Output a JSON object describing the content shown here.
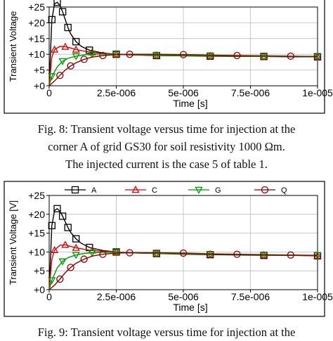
{
  "captions": {
    "fig8_line1": "Fig. 8: Transient voltage versus time for injection at the",
    "fig8_line2": "corner A of grid GS30 for soil resistivity 1000 Ωm.",
    "fig8_line3": "The injected current is the case 5 of table 1.",
    "fig9_partial": "Fig. 9: Transient voltage versus time for injection at the"
  },
  "chart_data": [
    {
      "type": "line",
      "xlabel": "Time [s]",
      "ylabel": "Transient Voltage",
      "xlim": [
        0,
        1e-05
      ],
      "ylim": [
        0,
        25
      ],
      "xticks": [
        "0",
        "2.5e-006",
        "5e-006",
        "7.5e-006",
        "1e-005"
      ],
      "yticks": [
        "+0",
        "+5",
        "+10",
        "+15",
        "+20",
        "+25"
      ],
      "grid": true,
      "series": [
        {
          "color": "#000000",
          "marker": "square",
          "x": [
            0,
            1e-07,
            2e-07,
            3e-07,
            4e-07,
            5e-07,
            6e-07,
            7e-07,
            8e-07,
            1e-06,
            1.2e-06,
            1.5e-06,
            2e-06,
            2.5e-06,
            3e-06,
            4e-06,
            5e-06,
            6e-06,
            7e-06,
            8e-06,
            9e-06,
            1e-05
          ],
          "y": [
            0,
            21,
            26,
            26.5,
            25.5,
            23.5,
            21,
            18.5,
            16.5,
            14,
            12.5,
            11.3,
            10.4,
            10,
            9.8,
            9.6,
            9.5,
            9.4,
            9.3,
            9.3,
            9.2,
            9.2
          ]
        },
        {
          "color": "#e00000",
          "marker": "triangle-up",
          "x": [
            0,
            1e-07,
            2e-07,
            4e-07,
            6e-07,
            8e-07,
            1e-06,
            1.3e-06,
            1.6e-06,
            2e-06,
            2.5e-06,
            3e-06,
            4e-06,
            5e-06,
            6e-06,
            7e-06,
            8e-06,
            9e-06,
            1e-05
          ],
          "y": [
            0,
            9,
            11.5,
            12.5,
            12.4,
            12,
            11.5,
            11,
            10.6,
            10.3,
            10,
            9.8,
            9.7,
            9.6,
            9.5,
            9.4,
            9.3,
            9.3,
            9.3
          ]
        },
        {
          "color": "#009900",
          "marker": "triangle-down",
          "x": [
            0,
            1e-07,
            3e-07,
            5e-07,
            7e-07,
            1e-06,
            1.3e-06,
            1.6e-06,
            2e-06,
            2.5e-06,
            3e-06,
            4e-06,
            5e-06,
            6e-06,
            7e-06,
            8e-06,
            9e-06,
            1e-05
          ],
          "y": [
            0,
            3,
            6,
            7.8,
            8.7,
            9.4,
            9.8,
            10,
            10.1,
            10,
            9.9,
            9.7,
            9.6,
            9.5,
            9.4,
            9.3,
            9.3,
            9.2
          ]
        },
        {
          "color": "#880000",
          "marker": "circle",
          "x": [
            0,
            2e-07,
            4e-07,
            6e-07,
            8e-07,
            1e-06,
            1.3e-06,
            1.6e-06,
            2e-06,
            2.5e-06,
            3e-06,
            4e-06,
            5e-06,
            6e-06,
            7e-06,
            8e-06,
            9e-06,
            1e-05
          ],
          "y": [
            0,
            1.5,
            3.3,
            5,
            6.3,
            7.3,
            8.4,
            9.1,
            9.6,
            9.9,
            10,
            10,
            9.9,
            9.7,
            9.6,
            9.5,
            9.4,
            9.3
          ]
        }
      ]
    },
    {
      "type": "line",
      "xlabel": "Time [s]",
      "ylabel": "Transient Voltage [V]",
      "xlim": [
        0,
        1e-05
      ],
      "ylim": [
        0,
        25
      ],
      "xticks": [
        "0",
        "2.5e-006",
        "5e-006",
        "7.5e-006",
        "1e-005"
      ],
      "yticks": [
        "+0",
        "+5",
        "+10",
        "+15",
        "+20",
        "+25"
      ],
      "grid": true,
      "legend_position": "top",
      "series": [
        {
          "name": "A",
          "color": "#000000",
          "marker": "square",
          "x": [
            0,
            1e-07,
            2e-07,
            3e-07,
            4e-07,
            5e-07,
            6e-07,
            7e-07,
            8e-07,
            1e-06,
            1.2e-06,
            1.5e-06,
            2e-06,
            2.5e-06,
            3e-06,
            4e-06,
            5e-06,
            6e-06,
            7e-06,
            8e-06,
            9e-06,
            1e-05
          ],
          "y": [
            0,
            17,
            21,
            21.5,
            20.8,
            19.5,
            18,
            16.5,
            15.2,
            13.5,
            12.3,
            11.2,
            10.4,
            10,
            9.8,
            9.6,
            9.4,
            9.3,
            9.2,
            9.1,
            9.1,
            9.0
          ]
        },
        {
          "name": "C",
          "color": "#e00000",
          "marker": "triangle-up",
          "x": [
            0,
            1e-07,
            2e-07,
            4e-07,
            6e-07,
            8e-07,
            1e-06,
            1.3e-06,
            1.6e-06,
            2e-06,
            2.5e-06,
            3e-06,
            4e-06,
            5e-06,
            6e-06,
            7e-06,
            8e-06,
            9e-06,
            1e-05
          ],
          "y": [
            0,
            8,
            10.5,
            11.8,
            11.9,
            11.5,
            11.1,
            10.7,
            10.4,
            10.2,
            10,
            9.8,
            9.6,
            9.5,
            9.4,
            9.3,
            9.2,
            9.1,
            9.0
          ]
        },
        {
          "name": "G",
          "color": "#009900",
          "marker": "triangle-down",
          "x": [
            0,
            1e-07,
            3e-07,
            5e-07,
            7e-07,
            1e-06,
            1.3e-06,
            1.6e-06,
            2e-06,
            2.5e-06,
            3e-06,
            4e-06,
            5e-06,
            6e-06,
            7e-06,
            8e-06,
            9e-06,
            1e-05
          ],
          "y": [
            0,
            2.5,
            5.8,
            7.5,
            8.5,
            9.2,
            9.6,
            9.8,
            9.9,
            9.9,
            9.8,
            9.6,
            9.5,
            9.4,
            9.3,
            9.2,
            9.1,
            9.1
          ]
        },
        {
          "name": "Q",
          "color": "#880000",
          "marker": "circle",
          "x": [
            0,
            2e-07,
            4e-07,
            6e-07,
            8e-07,
            1e-06,
            1.3e-06,
            1.6e-06,
            2e-06,
            2.5e-06,
            3e-06,
            4e-06,
            5e-06,
            6e-06,
            7e-06,
            8e-06,
            9e-06,
            1e-05
          ],
          "y": [
            0,
            1.2,
            2.8,
            4.5,
            5.9,
            7,
            8.1,
            8.9,
            9.4,
            9.7,
            9.8,
            9.8,
            9.7,
            9.5,
            9.4,
            9.3,
            9.2,
            9.1
          ]
        }
      ]
    }
  ]
}
